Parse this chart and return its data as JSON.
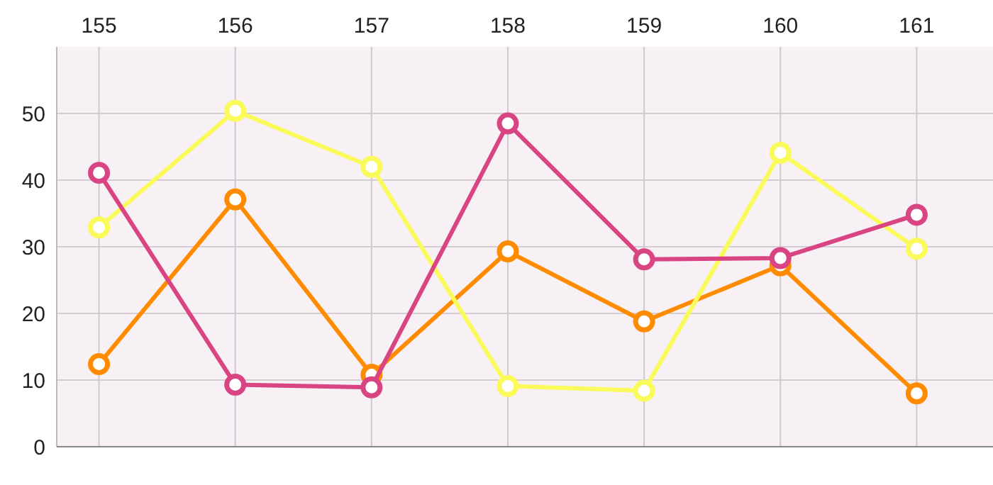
{
  "chart_data": {
    "type": "line",
    "x": [
      155,
      156,
      157,
      158,
      159,
      160,
      161
    ],
    "xlim": [
      154.69,
      161.56
    ],
    "xticks": [
      155,
      156,
      157,
      158,
      159,
      160,
      161
    ],
    "ylim": [
      0,
      60
    ],
    "yticks": [
      0,
      10,
      20,
      30,
      40,
      50
    ],
    "grid": true,
    "marker": "circle",
    "line_style": "solid",
    "series": [
      {
        "color": "#d94483",
        "values": [
          41.1,
          9.3,
          8.9,
          48.5,
          28.1,
          28.3,
          34.8
        ]
      },
      {
        "color": "#fafa5a",
        "values": [
          32.9,
          50.4,
          42,
          9.1,
          8.4,
          44.1,
          29.7
        ]
      },
      {
        "color": "#ff8c00",
        "values": [
          12.4,
          37.1,
          10.8,
          29.3,
          18.8,
          27.2,
          8.0
        ]
      }
    ]
  }
}
